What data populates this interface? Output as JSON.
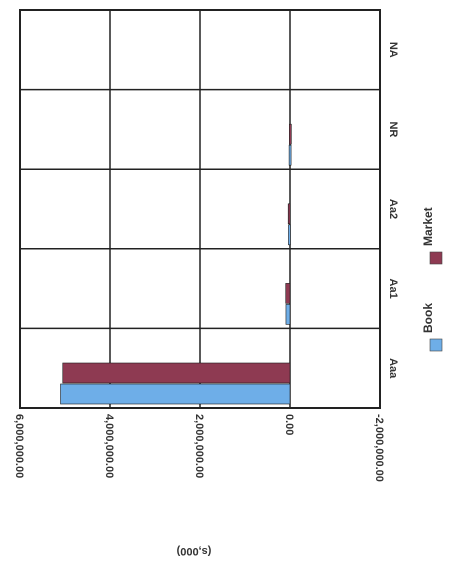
{
  "chart_data": {
    "type": "bar",
    "orientation": "horizontal",
    "rotated": "90deg clockwise",
    "categories": [
      "Aaa",
      "Aa1",
      "Aa2",
      "NR",
      "NA"
    ],
    "series": [
      {
        "name": "Book",
        "color": "#6eaee8",
        "values": [
          5100000,
          90000,
          35000,
          20000,
          0
        ]
      },
      {
        "name": "Market",
        "color": "#8e3a52",
        "values": [
          5050000,
          95000,
          40000,
          15000,
          0
        ]
      }
    ],
    "value_ticks": [
      "6,000,000.00",
      "4,000,000.00",
      "2,000,000.00",
      "0.00",
      "-2,000,000.00"
    ],
    "value_tick_values": [
      6000000,
      4000000,
      2000000,
      0,
      -2000000
    ],
    "xlim": [
      -2000000,
      6000000
    ],
    "unit_label": "(s,000)",
    "grid": true,
    "legend_placement": "right"
  }
}
